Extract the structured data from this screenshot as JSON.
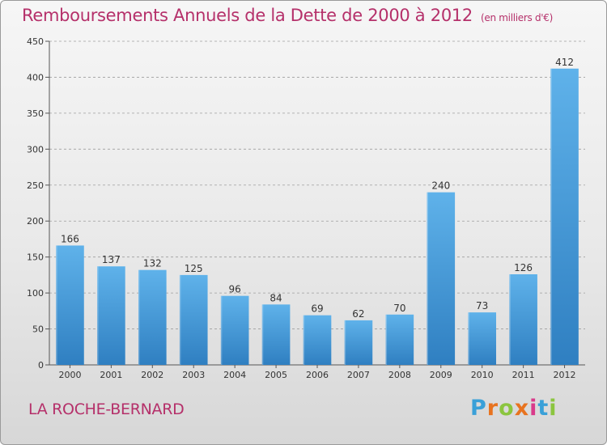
{
  "title": "Remboursements Annuels de la Dette de 2000 à 2012",
  "unit": "(en milliers d'€)",
  "commune": "LA ROCHE-BERNARD",
  "logo": {
    "text": "Proxiti",
    "letter_colors": [
      "#3aa0d8",
      "#e8731f",
      "#8bc53f",
      "#e8731f",
      "#d93a8a",
      "#3aa0d8",
      "#8bc53f"
    ]
  },
  "colors": {
    "title": "#b5306a",
    "bar_light": "#5fb2ea",
    "bar_dark": "#2f7fc1",
    "grid": "#9e9e9e"
  },
  "chart_data": {
    "type": "bar",
    "title": "Remboursements Annuels de la Dette de 2000 à 2012",
    "categories": [
      "2000",
      "2001",
      "2002",
      "2003",
      "2004",
      "2005",
      "2006",
      "2007",
      "2008",
      "2009",
      "2010",
      "2011",
      "2012"
    ],
    "values": [
      166,
      137,
      132,
      125,
      96,
      84,
      69,
      62,
      70,
      240,
      73,
      126,
      412
    ],
    "y_ticks": [
      0,
      50,
      100,
      150,
      200,
      250,
      300,
      350,
      400,
      450
    ],
    "ylim": [
      0,
      450
    ],
    "grid": true,
    "grid_style": "dashed-horizontal",
    "legend": "none"
  }
}
